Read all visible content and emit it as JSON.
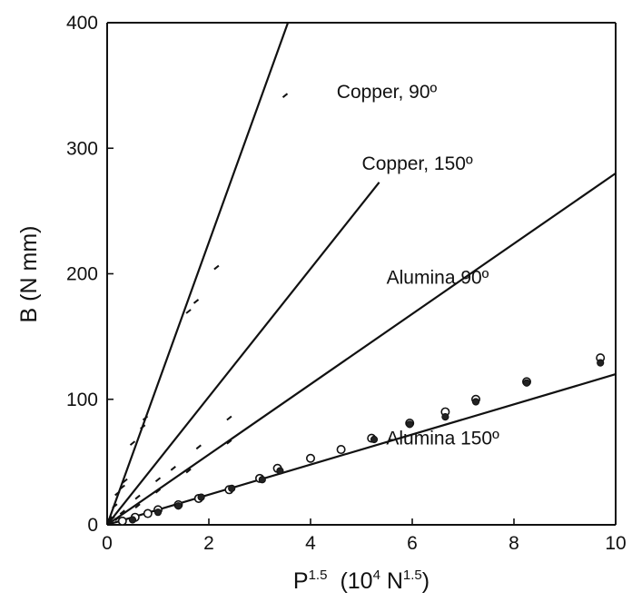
{
  "chart_data": {
    "type": "scatter",
    "title": "",
    "xlabel": "P¹˙⁵  (10⁴ N¹˙⁵)",
    "xlabel_parts": {
      "base": "P",
      "base_sup": "1.5",
      "unit_open": "(10",
      "unit_sup": "4",
      "unit_mid": " N",
      "unit_sup2": "1.5",
      "unit_close": ")"
    },
    "ylabel": "B (N mm)",
    "xlim": [
      0,
      10
    ],
    "ylim": [
      0,
      400
    ],
    "x_ticks": [
      "0",
      "2",
      "4",
      "6",
      "8",
      "10"
    ],
    "y_ticks": [
      "0",
      "100",
      "200",
      "300",
      "400"
    ],
    "grid": false,
    "series": [
      {
        "name": "Copper, 90°",
        "label_text": "Copper, 90º",
        "marker": "tick",
        "fit": {
          "slope": 112.5,
          "intercept": 0,
          "x_end": 3.56
        },
        "label_pos": [
          5.5,
          340
        ],
        "points": [
          [
            0.05,
            5
          ],
          [
            0.15,
            15
          ],
          [
            0.2,
            25
          ],
          [
            0.3,
            30
          ],
          [
            0.35,
            35
          ],
          [
            0.5,
            65
          ],
          [
            0.7,
            78
          ],
          [
            0.75,
            85
          ],
          [
            1.6,
            170
          ],
          [
            1.75,
            178
          ],
          [
            2.15,
            205
          ],
          [
            3.5,
            342
          ]
        ]
      },
      {
        "name": "Copper, 150°",
        "label_text": "Copper, 150º",
        "marker": "tick",
        "fit": {
          "slope": 51,
          "intercept": 0,
          "x_end": 5.35
        },
        "label_pos": [
          6.1,
          283
        ],
        "points": [
          [
            0.1,
            5
          ],
          [
            0.3,
            10
          ],
          [
            0.6,
            22
          ],
          [
            1.0,
            36
          ],
          [
            1.3,
            45
          ],
          [
            1.8,
            62
          ],
          [
            2.4,
            85
          ]
        ]
      },
      {
        "name": "Alumina 90°",
        "label_text": "Alumina 90º",
        "marker": "tick",
        "fit": {
          "slope": 28,
          "intercept": 0,
          "x_end": 10
        },
        "label_pos": [
          6.5,
          192
        ],
        "points": [
          [
            0.2,
            5
          ],
          [
            0.6,
            15
          ],
          [
            1.0,
            27
          ],
          [
            1.6,
            43
          ],
          [
            2.4,
            66
          ]
        ]
      },
      {
        "name": "Alumina 150°",
        "label_text": "Alumina 150º",
        "marker": "open-circle",
        "fit": {
          "slope": 12,
          "intercept": 0,
          "x_end": 10
        },
        "label_pos": [
          6.6,
          64
        ],
        "points": [
          [
            0.3,
            3
          ],
          [
            0.55,
            6
          ],
          [
            0.8,
            9
          ],
          [
            1.0,
            12
          ],
          [
            1.4,
            16
          ],
          [
            1.8,
            21
          ],
          [
            2.4,
            28
          ],
          [
            3.0,
            37
          ],
          [
            3.35,
            45
          ],
          [
            4.0,
            53
          ],
          [
            4.6,
            60
          ],
          [
            5.2,
            69
          ],
          [
            5.95,
            81
          ],
          [
            6.65,
            90
          ],
          [
            7.25,
            100
          ],
          [
            8.25,
            114
          ],
          [
            9.7,
            133
          ]
        ],
        "points_filled": [
          [
            0.5,
            4
          ],
          [
            1.0,
            10
          ],
          [
            1.4,
            15
          ],
          [
            1.85,
            22
          ],
          [
            2.45,
            29
          ],
          [
            3.05,
            36
          ],
          [
            3.4,
            43
          ],
          [
            5.25,
            68
          ],
          [
            5.95,
            80
          ],
          [
            6.65,
            86
          ],
          [
            7.25,
            98
          ],
          [
            8.25,
            113
          ],
          [
            9.7,
            129
          ]
        ]
      }
    ]
  }
}
